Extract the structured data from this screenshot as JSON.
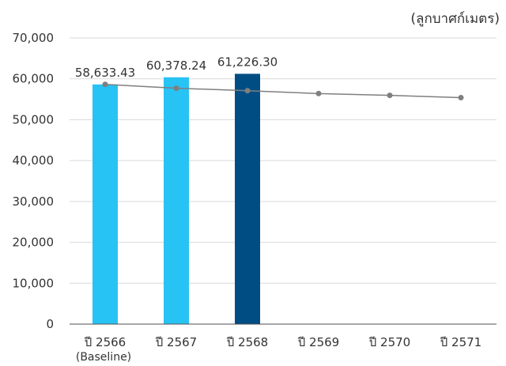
{
  "unit_label": "(ลูกบาศก์เมตร)",
  "colors": {
    "bar_light": "#27c3f4",
    "bar_dark": "#004d84",
    "trend_line": "#7f7f7f",
    "trend_marker": "#7f7f7f",
    "grid": "#d9d9d9",
    "axis": "#4f4f4f"
  },
  "chart_data": {
    "type": "bar",
    "categories": [
      "ปี 2566",
      "ปี 2567",
      "ปี 2568",
      "ปี 2569",
      "ปี 2570",
      "ปี 2571"
    ],
    "category_sublabels": [
      "(Baseline)",
      "",
      "",
      "",
      "",
      ""
    ],
    "ylim": [
      0,
      70000
    ],
    "yticks": [
      0,
      10000,
      20000,
      30000,
      40000,
      50000,
      60000,
      70000
    ],
    "ytick_labels": [
      "0",
      "10,000",
      "20,000",
      "30,000",
      "40,000",
      "50,000",
      "60,000",
      "70,000"
    ],
    "grid": true,
    "series": [
      {
        "type": "bar",
        "values": [
          58633.43,
          60378.24,
          61226.3,
          null,
          null,
          null
        ],
        "data_labels": [
          "58,633.43",
          "60,378.24",
          "61,226.30",
          "",
          "",
          ""
        ],
        "bar_colors": [
          "#27c3f4",
          "#27c3f4",
          "#004d84",
          null,
          null,
          null
        ]
      },
      {
        "type": "line",
        "values": [
          58633,
          57700,
          57100,
          56400,
          55950,
          55400
        ]
      }
    ]
  }
}
